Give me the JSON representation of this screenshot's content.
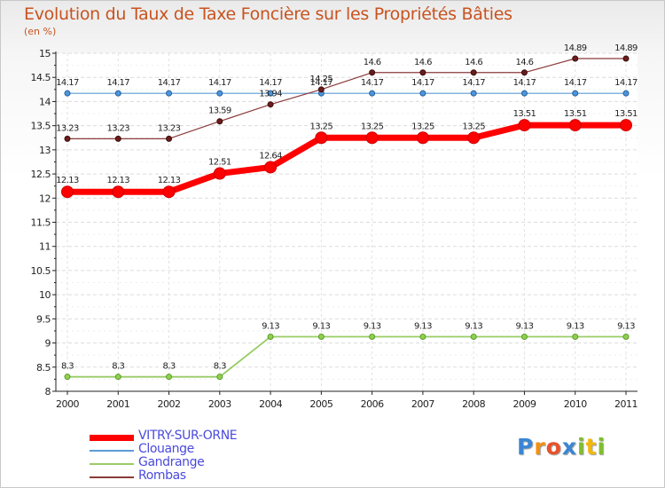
{
  "chart_data": {
    "type": "line",
    "title": "Evolution du Taux de Taxe Foncière sur les Propriétés Bâties",
    "ylabel": "(en %)",
    "xlabel": "",
    "categories": [
      "2000",
      "2001",
      "2002",
      "2003",
      "2004",
      "2005",
      "2006",
      "2007",
      "2008",
      "2009",
      "2010",
      "2011"
    ],
    "ylim": [
      8,
      15
    ],
    "yticks": [
      8,
      8.5,
      9,
      9.5,
      10,
      10.5,
      11,
      11.5,
      12,
      12.5,
      13,
      13.5,
      14,
      14.5,
      15
    ],
    "ytick_labels": [
      "8",
      "8.5",
      "9",
      "9.5",
      "10",
      "10.5",
      "11",
      "11.5",
      "12",
      "12.5",
      "13",
      "13.5",
      "14",
      "14.5",
      "15"
    ],
    "grid": true,
    "legend_position": "bottom-left",
    "series": [
      {
        "name": "VITRY-SUR-ORNE",
        "color": "#ff0000",
        "values": [
          12.13,
          12.13,
          12.13,
          12.51,
          12.64,
          13.25,
          13.25,
          13.25,
          13.25,
          13.51,
          13.51,
          13.51
        ],
        "labels": [
          "12.13",
          "12.13",
          "12.13",
          "12.51",
          "12.64",
          "13.25",
          "13.25",
          "13.25",
          "13.25",
          "13.51",
          "13.51",
          "13.51"
        ]
      },
      {
        "name": "Clouange",
        "color": "#5b9bd5",
        "values": [
          14.17,
          14.17,
          14.17,
          14.17,
          14.17,
          14.17,
          14.17,
          14.17,
          14.17,
          14.17,
          14.17,
          14.17
        ],
        "labels": [
          "14.17",
          "14.17",
          "14.17",
          "14.17",
          "14.17",
          "14.17",
          "14.17",
          "14.17",
          "14.17",
          "14.17",
          "14.17",
          "14.17"
        ]
      },
      {
        "name": "Gandrange",
        "color": "#99cc66",
        "values": [
          8.3,
          8.3,
          8.3,
          8.3,
          9.13,
          9.13,
          9.13,
          9.13,
          9.13,
          9.13,
          9.13,
          9.13
        ],
        "labels": [
          "8.3",
          "8.3",
          "8.3",
          "8.3",
          "9.13",
          "9.13",
          "9.13",
          "9.13",
          "9.13",
          "9.13",
          "9.13",
          "9.13"
        ]
      },
      {
        "name": "Rombas",
        "color": "#8b3a3a",
        "values": [
          13.23,
          13.23,
          13.23,
          13.59,
          13.94,
          14.25,
          14.6,
          14.6,
          14.6,
          14.6,
          14.89,
          14.89
        ],
        "labels": [
          "13.23",
          "13.23",
          "13.23",
          "13.59",
          "13.94",
          "14.25",
          "14.6",
          "14.6",
          "14.6",
          "14.6",
          "14.89",
          "14.89"
        ]
      }
    ]
  },
  "legend": {
    "items": [
      {
        "name": "VITRY-SUR-ORNE"
      },
      {
        "name": "Clouange"
      },
      {
        "name": "Gandrange"
      },
      {
        "name": "Rombas"
      }
    ]
  },
  "logo": {
    "letters": [
      "P",
      "r",
      "o",
      "x",
      "i",
      "t",
      "i"
    ],
    "colors": [
      "#3a86d4",
      "#f29111",
      "#e8522a",
      "#3a86d4",
      "#7fbf2a",
      "#f2b711",
      "#7fbf2a"
    ]
  }
}
